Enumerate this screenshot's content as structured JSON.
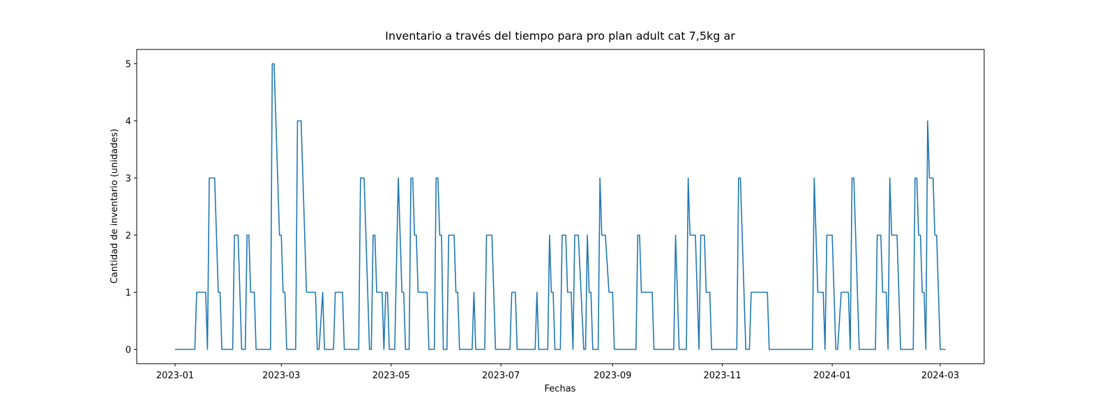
{
  "chart_data": {
    "type": "line",
    "title": "Inventario a través del tiempo para pro plan adult cat 7,5kg ar",
    "xlabel": "Fechas",
    "ylabel": "Cantidad de inventario (unidades)",
    "color": "#1f77b4",
    "x": [
      0,
      11,
      12,
      17,
      18,
      19,
      22,
      24,
      25,
      26,
      32,
      33,
      35,
      37,
      39,
      40,
      41,
      42,
      44,
      45,
      53,
      54,
      55,
      58,
      59,
      60,
      61,
      62,
      67,
      68,
      70,
      73,
      78,
      79,
      80,
      82,
      83,
      88,
      89,
      93,
      94,
      102,
      103,
      105,
      108,
      109,
      110,
      111,
      112,
      115,
      116,
      117,
      118,
      119,
      122,
      124,
      126,
      127,
      128,
      130,
      131,
      132,
      133,
      134,
      135,
      140,
      141,
      144,
      145,
      146,
      147,
      148,
      149,
      151,
      152,
      155,
      156,
      157,
      158,
      165,
      166,
      167,
      172,
      173,
      176,
      178,
      186,
      187,
      189,
      190,
      200,
      201,
      202,
      207,
      208,
      209,
      210,
      211,
      214,
      215,
      217,
      218,
      220,
      221,
      222,
      224,
      227,
      228,
      229,
      230,
      231,
      232,
      235,
      236,
      237,
      239,
      241,
      243,
      244,
      256,
      257,
      258,
      259,
      265,
      266,
      277,
      278,
      280,
      284,
      285,
      286,
      289,
      291,
      292,
      294,
      295,
      297,
      298,
      312,
      313,
      314,
      317,
      319,
      320,
      329,
      330,
      354,
      355,
      357,
      360,
      361,
      362,
      365,
      367,
      368,
      370,
      374,
      375,
      376,
      377,
      380,
      389,
      390,
      392,
      393,
      395,
      396,
      397,
      398,
      401,
      402,
      403,
      410,
      411,
      412,
      413,
      414,
      415,
      416,
      417,
      418,
      419,
      421,
      422,
      423,
      425,
      428
    ],
    "values": [
      0,
      0,
      1,
      1,
      0,
      3,
      3,
      1,
      1,
      0,
      0,
      2,
      2,
      0,
      0,
      2,
      2,
      1,
      1,
      0,
      0,
      5,
      5,
      2,
      2,
      1,
      1,
      0,
      0,
      4,
      4,
      1,
      1,
      0,
      0,
      1,
      0,
      0,
      1,
      1,
      0,
      0,
      3,
      3,
      0,
      0,
      2,
      2,
      1,
      1,
      0,
      1,
      1,
      0,
      0,
      3,
      1,
      1,
      0,
      0,
      3,
      3,
      2,
      2,
      1,
      1,
      0,
      0,
      3,
      3,
      2,
      2,
      0,
      0,
      2,
      2,
      1,
      1,
      0,
      0,
      1,
      0,
      0,
      2,
      2,
      0,
      0,
      1,
      1,
      0,
      0,
      1,
      0,
      0,
      2,
      1,
      1,
      0,
      0,
      2,
      2,
      1,
      1,
      0,
      2,
      2,
      0,
      0,
      2,
      1,
      1,
      0,
      0,
      3,
      2,
      2,
      1,
      1,
      0,
      0,
      2,
      2,
      1,
      1,
      0,
      0,
      2,
      0,
      0,
      3,
      2,
      2,
      0,
      2,
      2,
      1,
      1,
      0,
      0,
      3,
      3,
      0,
      0,
      1,
      1,
      0,
      0,
      3,
      1,
      1,
      0,
      2,
      2,
      0,
      0,
      1,
      1,
      0,
      3,
      3,
      0,
      0,
      2,
      2,
      1,
      1,
      0,
      3,
      2,
      2,
      1,
      0,
      0,
      3,
      3,
      2,
      2,
      1,
      1,
      0,
      4,
      3,
      3,
      2,
      2,
      0,
      0
    ],
    "xlim": [
      -21.3,
      449.4
    ],
    "ylim": [
      -0.25,
      5.25
    ],
    "xticks": [
      {
        "value": 0,
        "label": "2023-01"
      },
      {
        "value": 59,
        "label": "2023-03"
      },
      {
        "value": 120,
        "label": "2023-05"
      },
      {
        "value": 181,
        "label": "2023-07"
      },
      {
        "value": 243,
        "label": "2023-09"
      },
      {
        "value": 304,
        "label": "2023-11"
      },
      {
        "value": 365,
        "label": "2024-01"
      },
      {
        "value": 425,
        "label": "2024-03"
      }
    ],
    "yticks": [
      0,
      1,
      2,
      3,
      4,
      5
    ]
  }
}
